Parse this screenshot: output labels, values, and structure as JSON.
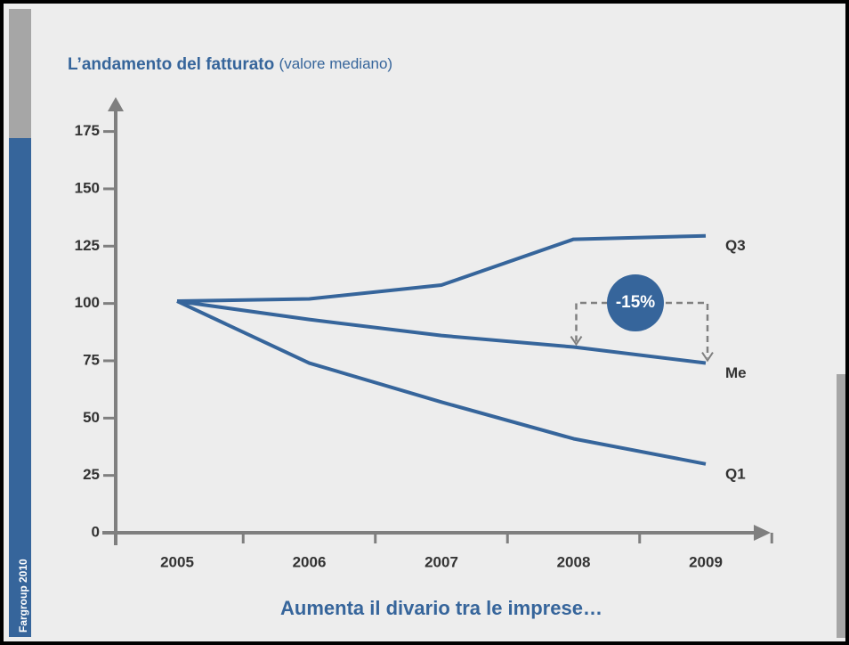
{
  "chart_data": {
    "type": "line",
    "title": "L’andamento del fatturato",
    "subtitle": "(valore mediano)",
    "categories": [
      "2005",
      "2006",
      "2007",
      "2008",
      "2009"
    ],
    "series": [
      {
        "name": "Q3",
        "color": "#36659b",
        "values": [
          101,
          102,
          108,
          128,
          129.5
        ]
      },
      {
        "name": "Me",
        "color": "#36659b",
        "values": [
          101,
          93,
          86,
          81,
          74
        ]
      },
      {
        "name": "Q1",
        "color": "#36659b",
        "values": [
          101,
          74,
          57,
          41,
          30
        ]
      }
    ],
    "ylim": [
      0,
      190
    ],
    "yticks": [
      0,
      25,
      50,
      75,
      100,
      125,
      150,
      175
    ],
    "annotation": "-15%",
    "caption": "Aumenta il divario tra le imprese…",
    "footer": "Fargroup 2010"
  }
}
